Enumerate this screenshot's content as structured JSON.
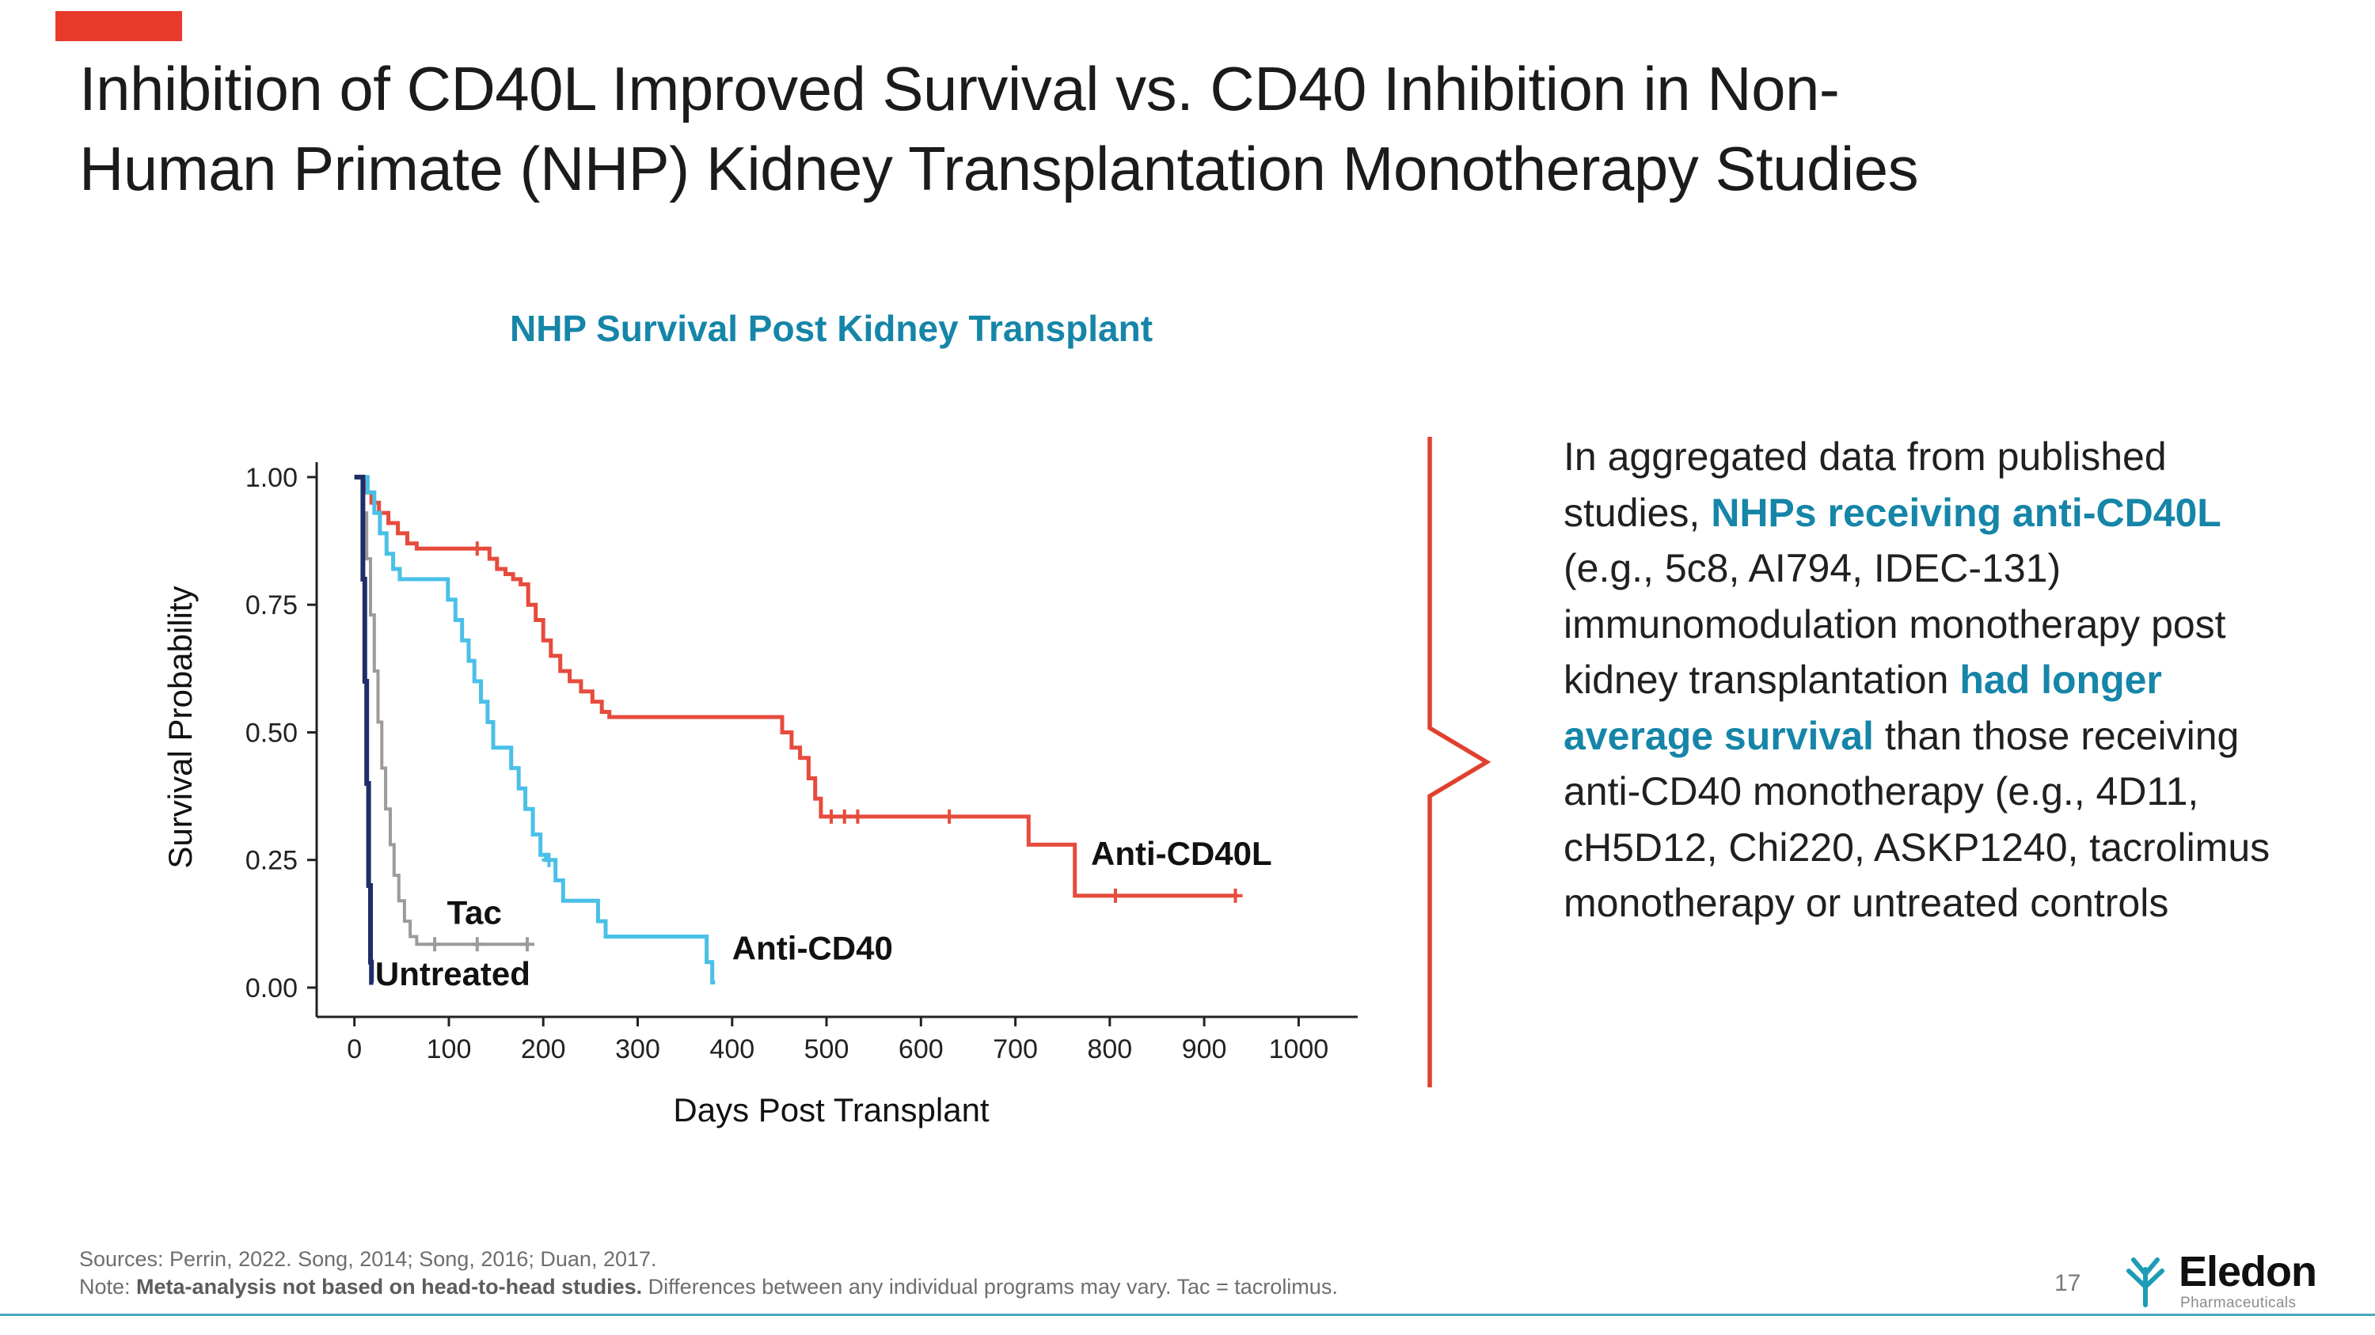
{
  "slide": {
    "title_line1": "Inhibition of CD40L Improved Survival vs. CD40 Inhibition in Non-",
    "title_line2": "Human Primate (NHP) Kidney Transplantation Monotherapy Studies",
    "accent_color": "#e8392b",
    "teal_color": "#1585a8",
    "bracket_color": "#e0412f"
  },
  "chart_title": "NHP Survival Post Kidney Transplant",
  "chart_data": {
    "type": "line",
    "subtype": "kaplan-meier-step",
    "title": "NHP Survival Post Kidney Transplant",
    "xlabel": "Days Post Transplant",
    "ylabel": "Survival Probability",
    "xlim": [
      -40,
      1050
    ],
    "ylim": [
      0,
      1.02
    ],
    "grid": false,
    "legend_position": "inline-labels",
    "x_ticks": [
      0,
      100,
      200,
      300,
      400,
      500,
      600,
      700,
      800,
      900,
      1000
    ],
    "y_ticks": [
      0.0,
      0.25,
      0.5,
      0.75,
      1.0
    ],
    "y_tick_labels": [
      "0.00",
      "0.25",
      "0.50",
      "0.75",
      "1.00"
    ],
    "series": [
      {
        "name": "Anti-CD40L",
        "color": "#e64b3c",
        "width": 5,
        "points": [
          [
            0,
            1.0
          ],
          [
            12,
            0.97
          ],
          [
            18,
            0.95
          ],
          [
            26,
            0.93
          ],
          [
            36,
            0.91
          ],
          [
            46,
            0.89
          ],
          [
            56,
            0.87
          ],
          [
            66,
            0.86
          ],
          [
            143,
            0.84
          ],
          [
            151,
            0.82
          ],
          [
            160,
            0.81
          ],
          [
            168,
            0.8
          ],
          [
            176,
            0.79
          ],
          [
            184,
            0.75
          ],
          [
            192,
            0.72
          ],
          [
            200,
            0.68
          ],
          [
            208,
            0.65
          ],
          [
            218,
            0.62
          ],
          [
            228,
            0.6
          ],
          [
            240,
            0.58
          ],
          [
            252,
            0.56
          ],
          [
            262,
            0.54
          ],
          [
            270,
            0.53
          ],
          [
            453,
            0.5
          ],
          [
            463,
            0.47
          ],
          [
            472,
            0.45
          ],
          [
            481,
            0.41
          ],
          [
            488,
            0.37
          ],
          [
            494,
            0.335
          ],
          [
            714,
            0.28
          ],
          [
            763,
            0.18
          ]
        ],
        "end": 935,
        "censors": [
          [
            130,
            0.86
          ],
          [
            505,
            0.335
          ],
          [
            519,
            0.335
          ],
          [
            533,
            0.335
          ],
          [
            630,
            0.335
          ],
          [
            806,
            0.18
          ],
          [
            933,
            0.18
          ]
        ]
      },
      {
        "name": "Anti-CD40",
        "color": "#49c0e8",
        "width": 5,
        "points": [
          [
            0,
            1.0
          ],
          [
            14,
            0.97
          ],
          [
            21,
            0.93
          ],
          [
            27,
            0.89
          ],
          [
            34,
            0.85
          ],
          [
            41,
            0.82
          ],
          [
            48,
            0.8
          ],
          [
            99,
            0.76
          ],
          [
            107,
            0.72
          ],
          [
            114,
            0.68
          ],
          [
            121,
            0.64
          ],
          [
            127,
            0.6
          ],
          [
            134,
            0.56
          ],
          [
            141,
            0.52
          ],
          [
            147,
            0.47
          ],
          [
            166,
            0.43
          ],
          [
            174,
            0.39
          ],
          [
            181,
            0.35
          ],
          [
            189,
            0.3
          ],
          [
            197,
            0.26
          ],
          [
            203,
            0.25
          ],
          [
            213,
            0.21
          ],
          [
            221,
            0.17
          ],
          [
            258,
            0.13
          ],
          [
            266,
            0.1
          ],
          [
            373,
            0.05
          ],
          [
            379,
            0.01
          ]
        ],
        "end": 382,
        "censors": [
          [
            206,
            0.25
          ]
        ]
      },
      {
        "name": "Tac",
        "color": "#9b9b9b",
        "width": 4,
        "points": [
          [
            0,
            1.0
          ],
          [
            9,
            0.93
          ],
          [
            13,
            0.84
          ],
          [
            17,
            0.73
          ],
          [
            21,
            0.62
          ],
          [
            25,
            0.52
          ],
          [
            29,
            0.43
          ],
          [
            33,
            0.35
          ],
          [
            38,
            0.28
          ],
          [
            42,
            0.22
          ],
          [
            47,
            0.17
          ],
          [
            53,
            0.13
          ],
          [
            59,
            0.1
          ],
          [
            66,
            0.085
          ]
        ],
        "end": 185,
        "censors": [
          [
            85,
            0.085
          ],
          [
            130,
            0.085
          ],
          [
            183,
            0.085
          ]
        ]
      },
      {
        "name": "Untreated",
        "color": "#1f2d69",
        "width": 6,
        "points": [
          [
            0,
            1.0
          ],
          [
            9,
            0.8
          ],
          [
            11,
            0.6
          ],
          [
            13,
            0.4
          ],
          [
            15,
            0.2
          ],
          [
            17,
            0.05
          ],
          [
            18,
            0.01
          ]
        ],
        "end": 20,
        "censors": []
      }
    ],
    "labels": [
      {
        "text": "Untreated",
        "day": 22,
        "p": 0.005
      },
      {
        "text": "Tac",
        "day": 98,
        "p": 0.125
      },
      {
        "text": "Anti-CD40",
        "day": 400,
        "p": 0.055
      },
      {
        "text": "Anti-CD40L",
        "day": 780,
        "p": 0.24
      }
    ]
  },
  "callout": {
    "segments": [
      {
        "text": "In aggregated data from published studies, ",
        "bold": false,
        "color": ""
      },
      {
        "text": "NHPs receiving anti-CD40L",
        "bold": true,
        "color": "#1585a8"
      },
      {
        "text": " (e.g., 5c8, AI794, IDEC-131) immunomodulation monotherapy post kidney transplantation ",
        "bold": false,
        "color": ""
      },
      {
        "text": "had longer average survival",
        "bold": true,
        "color": "#1585a8"
      },
      {
        "text": " than those receiving anti-CD40 monotherapy (e.g., 4D11, cH5D12, Chi220, ASKP1240, tacrolimus monotherapy or untreated controls",
        "bold": false,
        "color": ""
      }
    ]
  },
  "footer": {
    "sources": "Sources: Perrin, 2022. Song, 2014; Song, 2016; Duan, 2017.",
    "note_prefix": "Note: ",
    "note_bold": "Meta-analysis not based on head-to-head studies.",
    "note_rest": " Differences between any individual programs may vary. Tac = tacrolimus.",
    "page_number": "17"
  },
  "logo": {
    "name": "Eledon",
    "subtext": "Pharmaceuticals",
    "icon_color": "#1d9cb5"
  }
}
